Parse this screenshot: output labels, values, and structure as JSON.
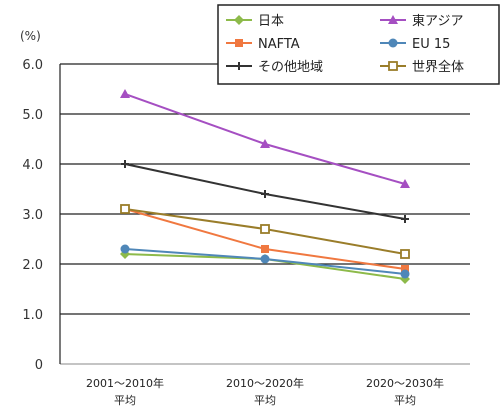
{
  "chart_data": {
    "type": "line",
    "unit": "(%)",
    "ylim": [
      0,
      6.0
    ],
    "yticks": [
      "0",
      "1.0",
      "2.0",
      "3.0",
      "4.0",
      "5.0",
      "6.0"
    ],
    "grid": true,
    "legend_position": "top-right",
    "categories": [
      [
        "2001〜2010年",
        "平均"
      ],
      [
        "2010〜2020年",
        "平均"
      ],
      [
        "2020〜2030年",
        "平均"
      ]
    ],
    "series": [
      {
        "name": "日本",
        "values": [
          2.2,
          2.1,
          1.7
        ],
        "color": "#8dba4a",
        "marker": "diamond"
      },
      {
        "name": "東アジア",
        "values": [
          5.4,
          4.4,
          3.6
        ],
        "color": "#a54fc2",
        "marker": "triangle"
      },
      {
        "name": "NAFTA",
        "values": [
          3.1,
          2.3,
          1.9
        ],
        "color": "#f07840",
        "marker": "square"
      },
      {
        "name": "EU 15",
        "values": [
          2.3,
          2.1,
          1.8
        ],
        "color": "#4f87b8",
        "marker": "circle"
      },
      {
        "name": "その他地域",
        "values": [
          4.0,
          3.4,
          2.9
        ],
        "color": "#333333",
        "marker": "cross"
      },
      {
        "name": "世界全体",
        "values": [
          3.1,
          2.7,
          2.2
        ],
        "color": "#9a7d2a",
        "marker": "open-square"
      }
    ]
  }
}
